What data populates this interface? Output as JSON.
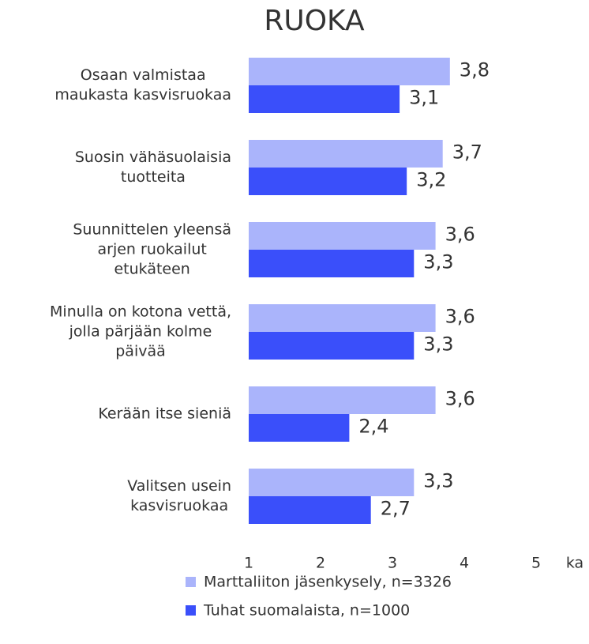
{
  "chart_data": {
    "type": "hbar",
    "title": "RUOKA",
    "categories": [
      "Osaan valmistaa\nmaukasta kasvisruokaa",
      "Suosin vähäsuolaisia\ntuotteita",
      "Suunnittelen yleensä\narjen ruokailut\netukäteen",
      "Minulla on kotona vettä,\njolla pärjään kolme\npäivää",
      "Kerään itse sieniä",
      "Valitsen usein\nkasvisruokaa"
    ],
    "series": [
      {
        "name": "Marttaliiton jäsenkysely, n=3326",
        "color": "#aab4fb",
        "values": [
          3.8,
          3.7,
          3.6,
          3.6,
          3.6,
          3.3
        ],
        "value_labels": [
          "3,8",
          "3,7",
          "3,6",
          "3,6",
          "3,6",
          "3,3"
        ]
      },
      {
        "name": "Tuhat suomalaista, n=1000",
        "color": "#3a4ffa",
        "values": [
          3.1,
          3.2,
          3.3,
          3.3,
          2.4,
          2.7
        ],
        "value_labels": [
          "3,1",
          "3,2",
          "3,3",
          "3,3",
          "2,4",
          "2,7"
        ]
      }
    ],
    "xlim": [
      1,
      5
    ],
    "xticks": [
      1,
      2,
      3,
      4,
      5
    ],
    "x_label": "ka"
  }
}
